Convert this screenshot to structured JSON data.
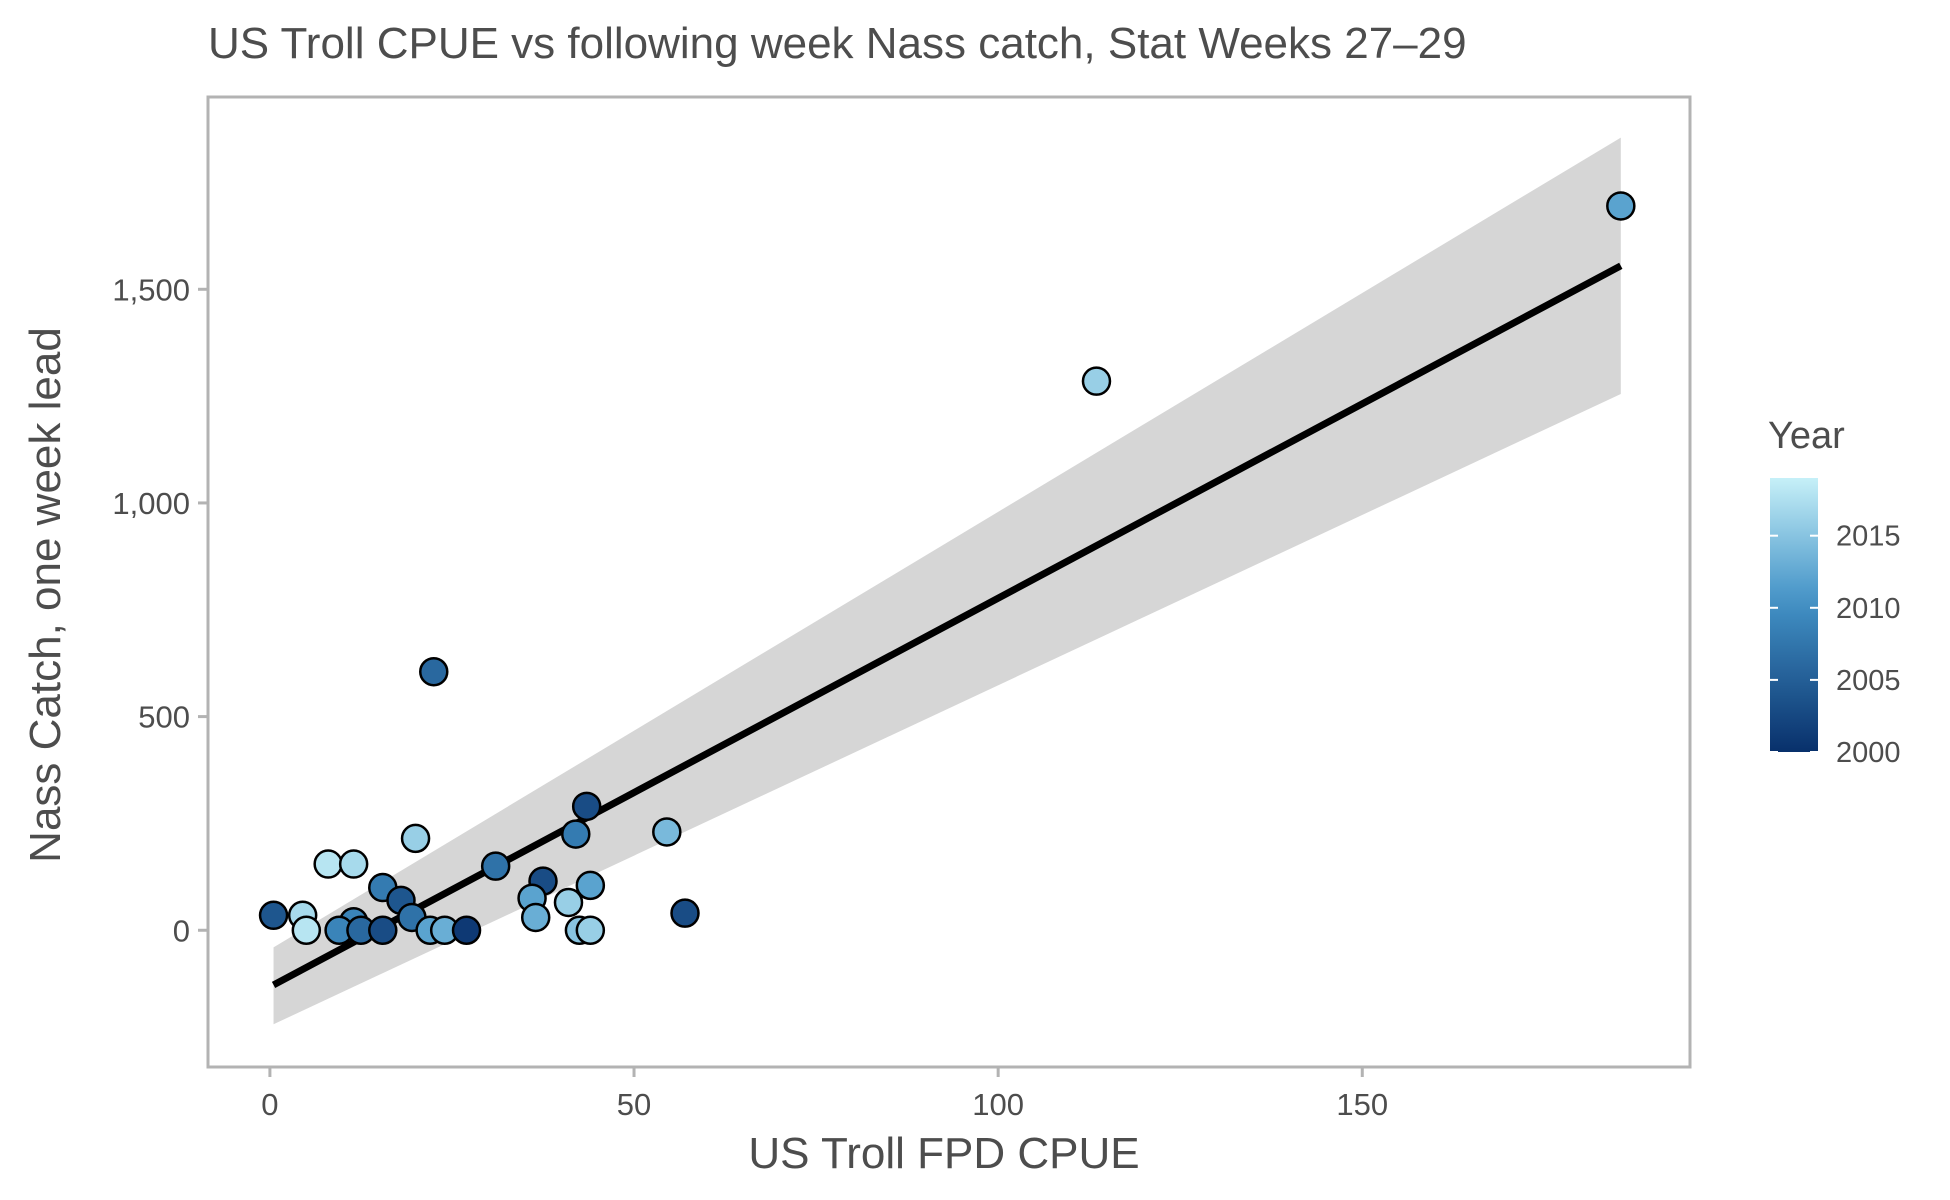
{
  "chart_data": {
    "type": "scatter",
    "title": "US Troll CPUE vs following week Nass catch, Stat Weeks 27–29",
    "xlabel": "US Troll FPD CPUE",
    "ylabel": "Nass Catch, one week lead",
    "xlim": [
      -8.5,
      195
    ],
    "ylim": [
      -320,
      1950
    ],
    "x_ticks": [
      0,
      50,
      100,
      150
    ],
    "x_tick_labels": [
      "0",
      "50",
      "100",
      "150"
    ],
    "y_ticks": [
      0,
      500,
      1000,
      1500
    ],
    "y_tick_labels": [
      "0",
      "500",
      "1,000",
      "1,500"
    ],
    "grid": false,
    "legend": {
      "title": "Year",
      "placement": "right",
      "type": "colorbar",
      "range": [
        2000,
        2019
      ],
      "ticks": [
        2000,
        2005,
        2010,
        2015
      ],
      "tick_labels": [
        "2000",
        "2005",
        "2010",
        "2015"
      ],
      "color_low": "#08306b",
      "color_high": "#c6f0f8"
    },
    "fit": {
      "type": "linear",
      "line_color": "#000000",
      "band_color": "#d6d6d6",
      "x": [
        0.5,
        185.5
      ],
      "y": [
        -128,
        1555
      ],
      "lower": [
        -220,
        1255
      ],
      "upper": [
        -40,
        1855
      ]
    },
    "points": [
      {
        "x": 185.5,
        "y": 1695,
        "year": 2012
      },
      {
        "x": 113.5,
        "y": 1285,
        "year": 2016
      },
      {
        "x": 22.5,
        "y": 605,
        "year": 2006
      },
      {
        "x": 43.5,
        "y": 290,
        "year": 2003
      },
      {
        "x": 54.5,
        "y": 230,
        "year": 2014
      },
      {
        "x": 42.0,
        "y": 225,
        "year": 2008
      },
      {
        "x": 20.0,
        "y": 215,
        "year": 2016
      },
      {
        "x": 8.0,
        "y": 155,
        "year": 2018
      },
      {
        "x": 11.5,
        "y": 155,
        "year": 2017
      },
      {
        "x": 31.0,
        "y": 150,
        "year": 2007
      },
      {
        "x": 37.5,
        "y": 115,
        "year": 2003
      },
      {
        "x": 44.0,
        "y": 105,
        "year": 2012
      },
      {
        "x": 15.5,
        "y": 100,
        "year": 2008
      },
      {
        "x": 36.0,
        "y": 75,
        "year": 2012
      },
      {
        "x": 18.0,
        "y": 70,
        "year": 2004
      },
      {
        "x": 41.0,
        "y": 65,
        "year": 2016
      },
      {
        "x": 57.0,
        "y": 40,
        "year": 2003
      },
      {
        "x": 0.5,
        "y": 35,
        "year": 2004
      },
      {
        "x": 4.5,
        "y": 35,
        "year": 2017
      },
      {
        "x": 19.5,
        "y": 30,
        "year": 2007
      },
      {
        "x": 36.5,
        "y": 30,
        "year": 2013
      },
      {
        "x": 11.5,
        "y": 20,
        "year": 2009
      },
      {
        "x": 5.0,
        "y": 0,
        "year": 2018
      },
      {
        "x": 9.5,
        "y": 0,
        "year": 2009
      },
      {
        "x": 12.5,
        "y": 0,
        "year": 2006
      },
      {
        "x": 15.5,
        "y": 0,
        "year": 2003
      },
      {
        "x": 22.0,
        "y": 0,
        "year": 2012
      },
      {
        "x": 24.0,
        "y": 0,
        "year": 2013
      },
      {
        "x": 27.0,
        "y": 0,
        "year": 2001
      },
      {
        "x": 42.5,
        "y": 0,
        "year": 2015
      },
      {
        "x": 44.0,
        "y": 0,
        "year": 2016
      }
    ]
  }
}
